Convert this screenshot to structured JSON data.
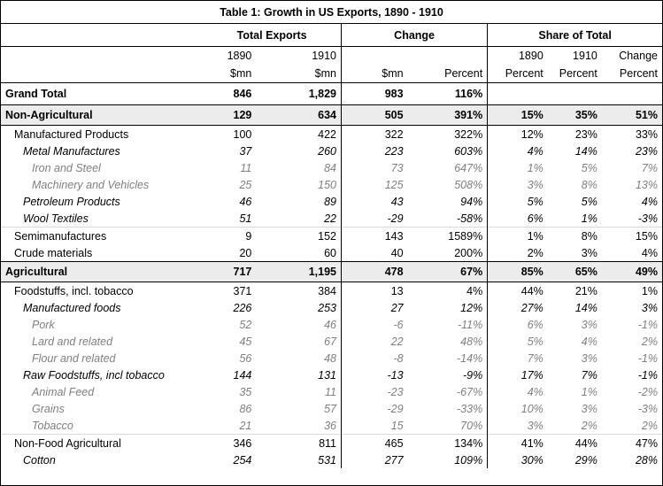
{
  "title": "Table 1: Growth in US Exports, 1890 - 1910",
  "groups": {
    "total_exports": "Total Exports",
    "change": "Change",
    "share_of_total": "Share of Total"
  },
  "headers": {
    "row1": [
      "1890",
      "1910",
      "",
      "",
      "1890",
      "1910",
      "Change"
    ],
    "row2": [
      "$mn",
      "$mn",
      "$mn",
      "Percent",
      "Percent",
      "Percent",
      "Percent"
    ]
  },
  "grand_total": {
    "label": "Grand Total",
    "values": [
      "846",
      "1,829",
      "983",
      "116%",
      "",
      "",
      ""
    ]
  },
  "rows": [
    {
      "label": "Non-Agricultural",
      "kind": "section",
      "values": [
        "129",
        "634",
        "505",
        "391%",
        "15%",
        "35%",
        "51%"
      ]
    },
    {
      "label": "Manufactured Products",
      "kind": "l1",
      "values": [
        "100",
        "422",
        "322",
        "322%",
        "12%",
        "23%",
        "33%"
      ]
    },
    {
      "label": "Metal Manufactures",
      "kind": "l2",
      "values": [
        "37",
        "260",
        "223",
        "603%",
        "4%",
        "14%",
        "23%"
      ]
    },
    {
      "label": "Iron and Steel",
      "kind": "l3",
      "values": [
        "11",
        "84",
        "73",
        "647%",
        "1%",
        "5%",
        "7%"
      ]
    },
    {
      "label": "Machinery and Vehicles",
      "kind": "l3",
      "values": [
        "25",
        "150",
        "125",
        "508%",
        "3%",
        "8%",
        "13%"
      ]
    },
    {
      "label": "Petroleum Products",
      "kind": "l2",
      "values": [
        "46",
        "89",
        "43",
        "94%",
        "5%",
        "5%",
        "4%"
      ]
    },
    {
      "label": "Wool Textiles",
      "kind": "l2",
      "values": [
        "51",
        "22",
        "-29",
        "-58%",
        "6%",
        "1%",
        "-3%"
      ]
    },
    {
      "label": "Semimanufactures",
      "kind": "l1",
      "sep": true,
      "values": [
        "9",
        "152",
        "143",
        "1589%",
        "1%",
        "8%",
        "15%"
      ]
    },
    {
      "label": "Crude materials",
      "kind": "l1",
      "values": [
        "20",
        "60",
        "40",
        "200%",
        "2%",
        "3%",
        "4%"
      ]
    },
    {
      "label": "Agricultural",
      "kind": "section",
      "values": [
        "717",
        "1,195",
        "478",
        "67%",
        "85%",
        "65%",
        "49%"
      ]
    },
    {
      "label": "Foodstuffs, incl. tobacco",
      "kind": "l1",
      "values": [
        "371",
        "384",
        "13",
        "4%",
        "44%",
        "21%",
        "1%"
      ]
    },
    {
      "label": "Manufactured foods",
      "kind": "l2",
      "values": [
        "226",
        "253",
        "27",
        "12%",
        "27%",
        "14%",
        "3%"
      ]
    },
    {
      "label": "Pork",
      "kind": "l3",
      "values": [
        "52",
        "46",
        "-6",
        "-11%",
        "6%",
        "3%",
        "-1%"
      ]
    },
    {
      "label": "Lard and related",
      "kind": "l3",
      "values": [
        "45",
        "67",
        "22",
        "48%",
        "5%",
        "4%",
        "2%"
      ]
    },
    {
      "label": "Flour and related",
      "kind": "l3",
      "values": [
        "56",
        "48",
        "-8",
        "-14%",
        "7%",
        "3%",
        "-1%"
      ]
    },
    {
      "label": "Raw Foodstuffs, incl tobacco",
      "kind": "l2",
      "values": [
        "144",
        "131",
        "-13",
        "-9%",
        "17%",
        "7%",
        "-1%"
      ]
    },
    {
      "label": "Animal Feed",
      "kind": "l3",
      "values": [
        "35",
        "11",
        "-23",
        "-67%",
        "4%",
        "1%",
        "-2%"
      ]
    },
    {
      "label": "Grains",
      "kind": "l3",
      "values": [
        "86",
        "57",
        "-29",
        "-33%",
        "10%",
        "3%",
        "-3%"
      ]
    },
    {
      "label": "Tobacco",
      "kind": "l3",
      "values": [
        "21",
        "36",
        "15",
        "70%",
        "3%",
        "2%",
        "2%"
      ]
    },
    {
      "label": "Non-Food Agricultural",
      "kind": "l1",
      "sep": true,
      "values": [
        "346",
        "811",
        "465",
        "134%",
        "41%",
        "44%",
        "47%"
      ]
    },
    {
      "label": "Cotton",
      "kind": "l2",
      "values": [
        "254",
        "531",
        "277",
        "109%",
        "30%",
        "29%",
        "28%"
      ]
    }
  ]
}
